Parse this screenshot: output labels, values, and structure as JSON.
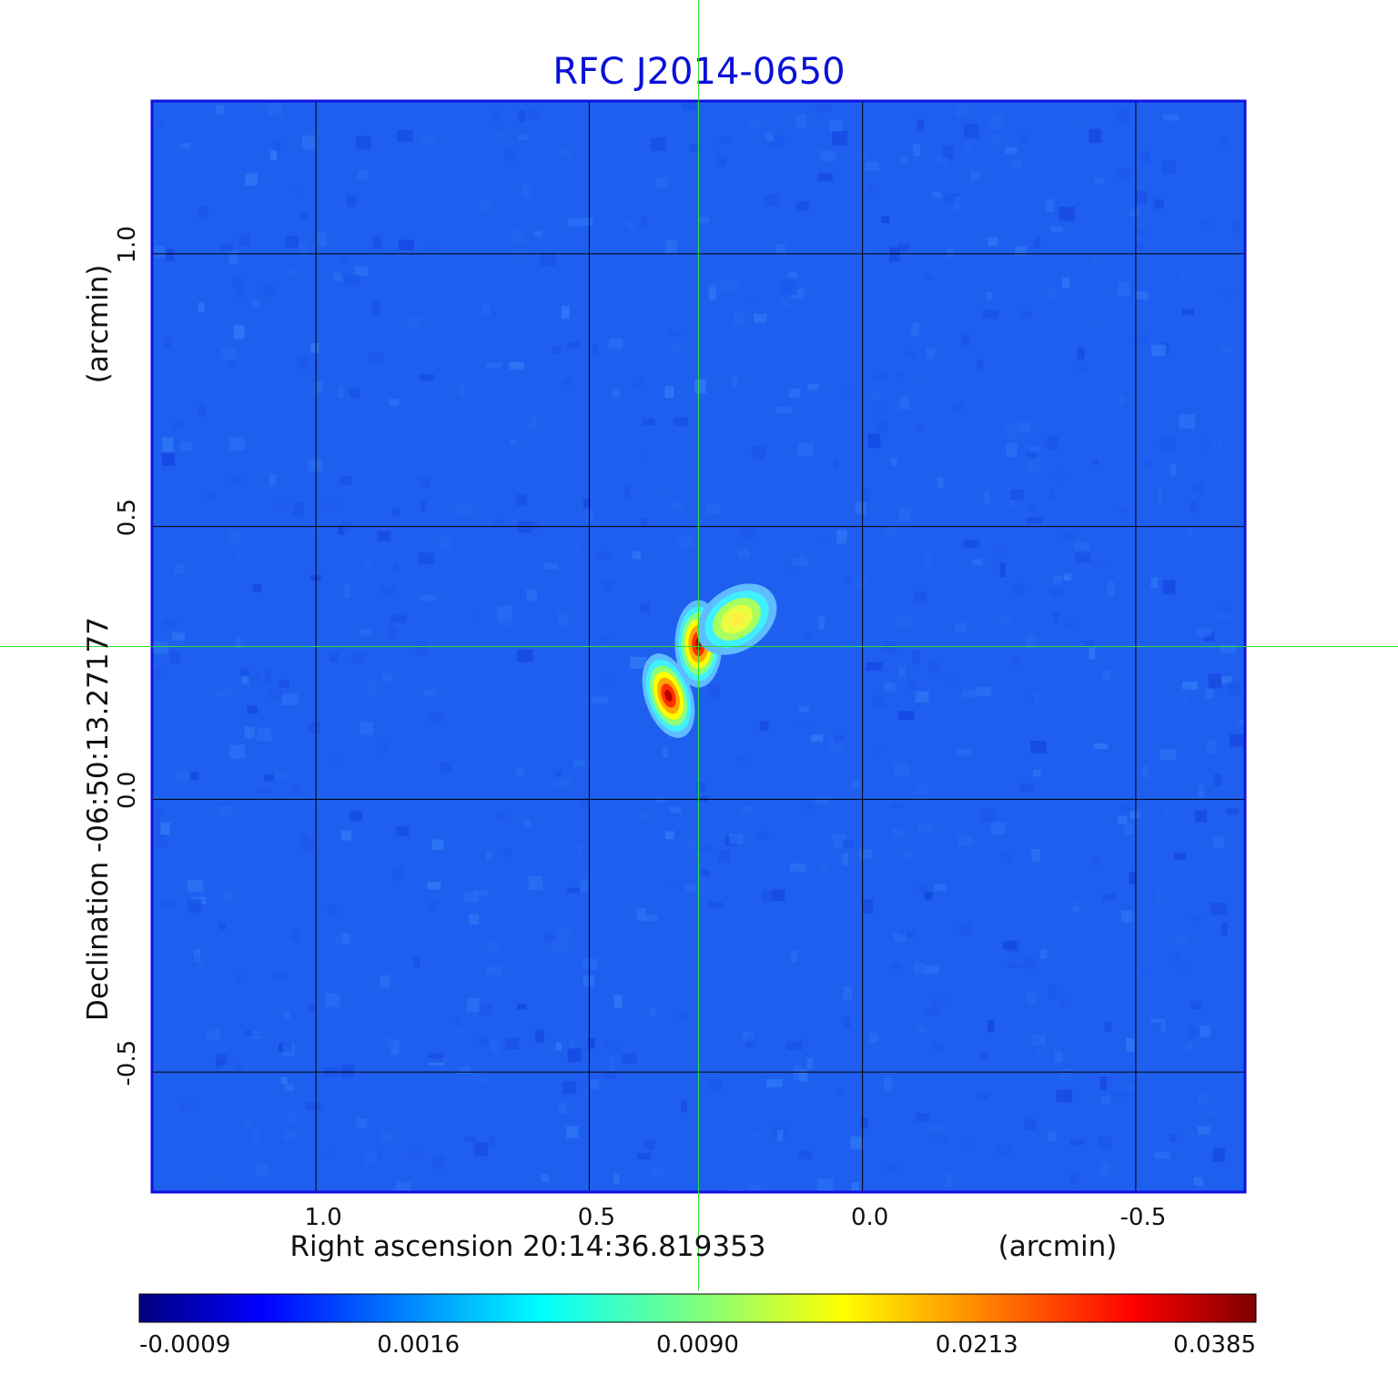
{
  "chart_data": {
    "type": "heatmap",
    "title": "RFC J2014-0650",
    "xlabel": "Right ascension  20:14:36.819353",
    "xunit": "(arcmin)",
    "ylabel": "Declination  -06:50:13.27177",
    "yunit": "(arcmin)",
    "xlim": [
      1.3,
      -0.7
    ],
    "ylim": [
      -0.72,
      1.28
    ],
    "xticks": [
      {
        "value": 1.0,
        "label": "1.0"
      },
      {
        "value": 0.5,
        "label": "0.5"
      },
      {
        "value": 0.0,
        "label": "0.0"
      },
      {
        "value": -0.5,
        "label": "-0.5"
      }
    ],
    "yticks": [
      {
        "value": 1.0,
        "label": "1.0"
      },
      {
        "value": 0.5,
        "label": "0.5"
      },
      {
        "value": 0.0,
        "label": "0.0"
      },
      {
        "value": -0.5,
        "label": "-0.5"
      }
    ],
    "grid": true,
    "crosshair": {
      "x": 0.3,
      "y": 0.28
    },
    "colormap": "jet",
    "colorbar": {
      "labels": [
        "-0.0009",
        "0.0016",
        "0.0090",
        "0.0213",
        "0.0385"
      ]
    },
    "peak_components": [
      {
        "x": 0.3,
        "y": 0.285,
        "value": 0.0385
      },
      {
        "x": 0.355,
        "y": 0.19,
        "value": 0.0385
      },
      {
        "x": 0.23,
        "y": 0.33,
        "value": 0.014
      }
    ],
    "colors": {
      "title": "#0a10d8",
      "frame": "#1010e0",
      "grid": "#000000",
      "crosshair": "#2ee02e",
      "background_level": "#1f5ff0"
    }
  }
}
